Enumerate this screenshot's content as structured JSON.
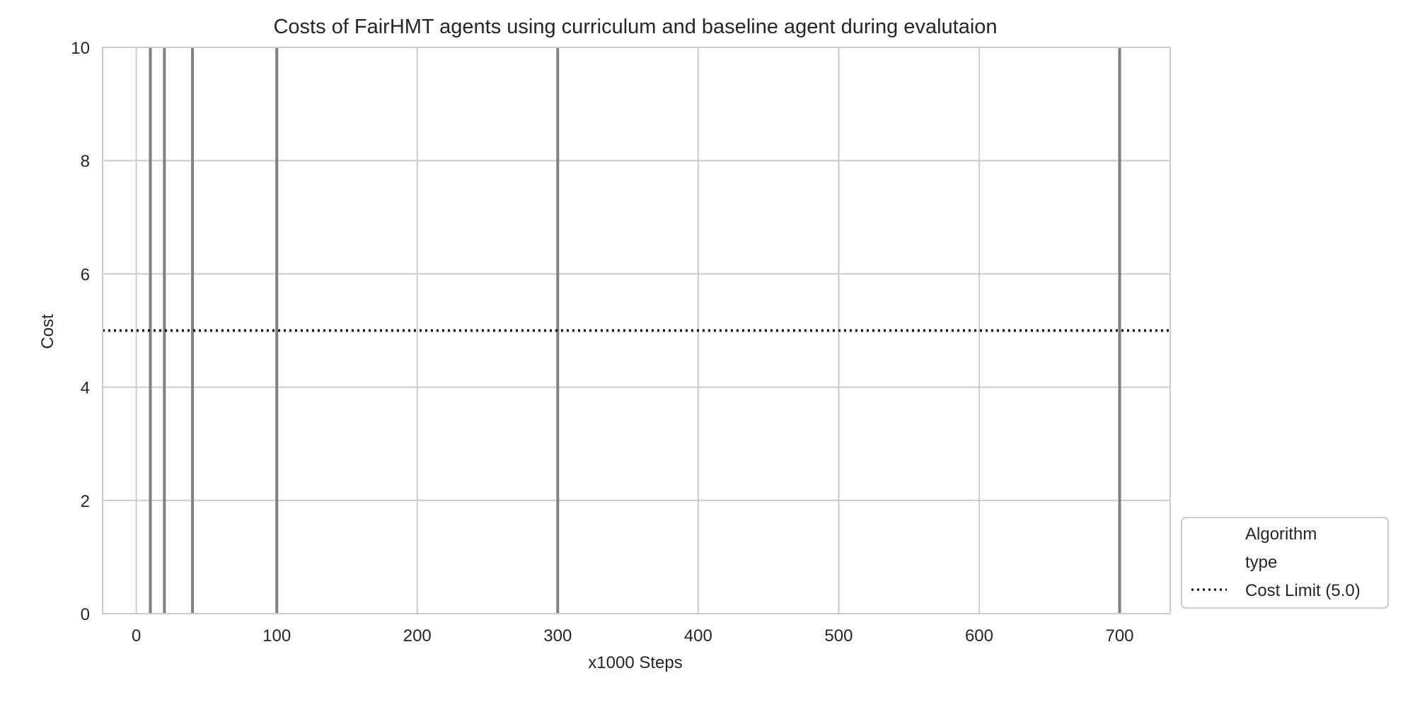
{
  "chart_data": {
    "type": "line",
    "title": "Costs of FairHMT agents using curriculum and baseline agent during evalutaion",
    "xlabel": "x1000 Steps",
    "ylabel": "Cost",
    "xlim": [
      -24,
      736
    ],
    "ylim": [
      0,
      10
    ],
    "xticks": [
      0,
      100,
      200,
      300,
      400,
      500,
      600,
      700
    ],
    "xtick_labels": [
      "0",
      "100",
      "200",
      "300",
      "400",
      "500",
      "600",
      "700"
    ],
    "yticks": [
      0,
      2,
      4,
      6,
      8,
      10
    ],
    "ytick_labels": [
      "0",
      "2",
      "4",
      "6",
      "8",
      "10"
    ],
    "grid": true,
    "vlines": {
      "x": [
        10,
        20,
        40,
        100,
        300,
        700
      ],
      "color": "#808080",
      "y_range": [
        0,
        10
      ]
    },
    "cost_limit": {
      "y": 5.0,
      "label": "Cost Limit (5.0)",
      "color": "#000000",
      "style": "dotted"
    },
    "legend": {
      "placement": "outside-lower-right",
      "title_lines": [
        "Algorithm",
        "type"
      ],
      "entries": [
        {
          "label": "Cost Limit (5.0)",
          "style": "dotted",
          "color": "#000000"
        }
      ]
    },
    "colors": {
      "grid": "#cccccc",
      "axes_edge": "#cccccc",
      "text": "#262626"
    }
  }
}
